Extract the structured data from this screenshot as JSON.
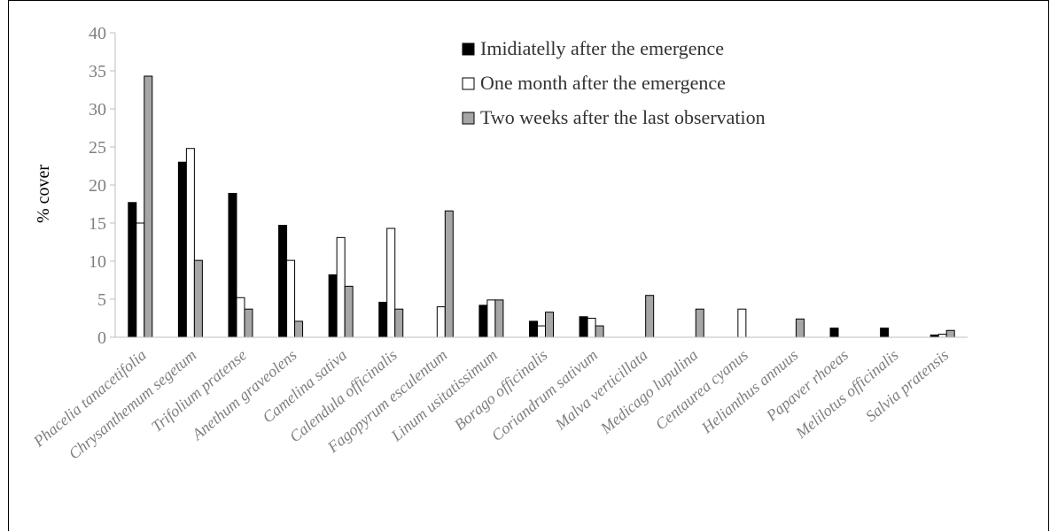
{
  "chart_data": {
    "type": "bar",
    "title": "",
    "xlabel": "",
    "ylabel": "% cover",
    "ylim": [
      0,
      40
    ],
    "yticks": [
      "0",
      "5",
      "10",
      "15",
      "20",
      "25",
      "30",
      "35",
      "40"
    ],
    "grid": false,
    "legend_position": "top-right",
    "categories": [
      "Phacelia tanacetifolia",
      "Chrysanthemum segetum",
      "Trifolium pratense",
      "Anethum graveolens",
      "Camelina sativa",
      "Calendula officinalis",
      "Fagopyrum esculentum",
      "Linum usitatissimum",
      "Borago officinalis",
      "Coriandrum sativum",
      "Malva verticillata",
      "Medicago lupulina",
      "Centaurea cyanus",
      "Helianthus annuus",
      "Papaver rhoeas",
      "Melilotus officinalis",
      "Salvia pratensis"
    ],
    "series": [
      {
        "name": "Imidiatelly after the emergence",
        "color": "#000000",
        "values": [
          17.7,
          23,
          18.9,
          14.7,
          8.2,
          4.6,
          0,
          4.2,
          2.1,
          2.7,
          0,
          0,
          0,
          0,
          1.2,
          1.2,
          0.3
        ]
      },
      {
        "name": "One month after the emergence",
        "color": "#ffffff",
        "values": [
          15,
          24.8,
          5.2,
          10.1,
          13.1,
          14.3,
          4,
          4.9,
          1.5,
          2.5,
          0,
          0,
          3.7,
          0,
          0,
          0,
          0.4
        ]
      },
      {
        "name": "Two weeks after the last observation",
        "color": "#a6a6a6",
        "values": [
          34.3,
          10.1,
          3.7,
          2.1,
          6.7,
          3.7,
          16.6,
          4.9,
          3.3,
          1.5,
          5.5,
          3.7,
          0,
          2.4,
          0,
          0,
          0.9
        ]
      }
    ]
  }
}
